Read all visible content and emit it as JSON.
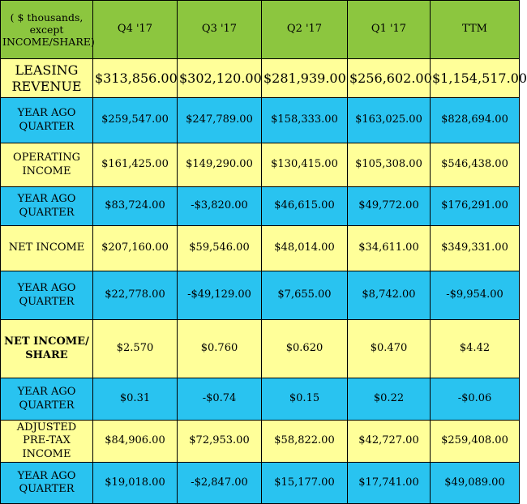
{
  "header": {
    "corner": "( $ thousands, except INCOME/SHARE)",
    "columns": [
      "Q4 '17",
      "Q3 '17",
      "Q2 '17",
      "Q1 '17",
      "TTM"
    ]
  },
  "rows": [
    {
      "label": "LEASING REVENUE",
      "values": [
        "$313,856.00",
        "$302,120.00",
        "$281,939.00",
        "$256,602.00",
        "$1,154,517.00"
      ]
    },
    {
      "label": "YEAR AGO QUARTER",
      "values": [
        "$259,547.00",
        "$247,789.00",
        "$158,333.00",
        "$163,025.00",
        "$828,694.00"
      ]
    },
    {
      "label": "OPERATING INCOME",
      "values": [
        "$161,425.00",
        "$149,290.00",
        "$130,415.00",
        "$105,308.00",
        "$546,438.00"
      ]
    },
    {
      "label": "YEAR AGO QUARTER",
      "values": [
        "$83,724.00",
        "-$3,820.00",
        "$46,615.00",
        "$49,772.00",
        "$176,291.00"
      ]
    },
    {
      "label": "NET INCOME",
      "values": [
        "$207,160.00",
        "$59,546.00",
        "$48,014.00",
        "$34,611.00",
        "$349,331.00"
      ]
    },
    {
      "label": "YEAR AGO QUARTER",
      "values": [
        "$22,778.00",
        "-$49,129.00",
        "$7,655.00",
        "$8,742.00",
        "-$9,954.00"
      ]
    },
    {
      "label": "NET INCOME/ SHARE",
      "values": [
        "$2.570",
        "$0.760",
        "$0.620",
        "$0.470",
        "$4.42"
      ]
    },
    {
      "label": "YEAR AGO QUARTER",
      "values": [
        "$0.31",
        "-$0.74",
        "$0.15",
        "$0.22",
        "-$0.06"
      ]
    },
    {
      "label": "ADJUSTED PRE-TAX INCOME",
      "values": [
        "$84,906.00",
        "$72,953.00",
        "$58,822.00",
        "$42,727.00",
        "$259,408.00"
      ]
    },
    {
      "label": "YEAR AGO QUARTER",
      "values": [
        "$19,018.00",
        "-$2,847.00",
        "$15,177.00",
        "$17,741.00",
        "$49,089.00"
      ]
    }
  ],
  "colors": {
    "header": "#8cc63f",
    "row_primary": "#ffff99",
    "row_year_ago": "#29c3f0"
  }
}
